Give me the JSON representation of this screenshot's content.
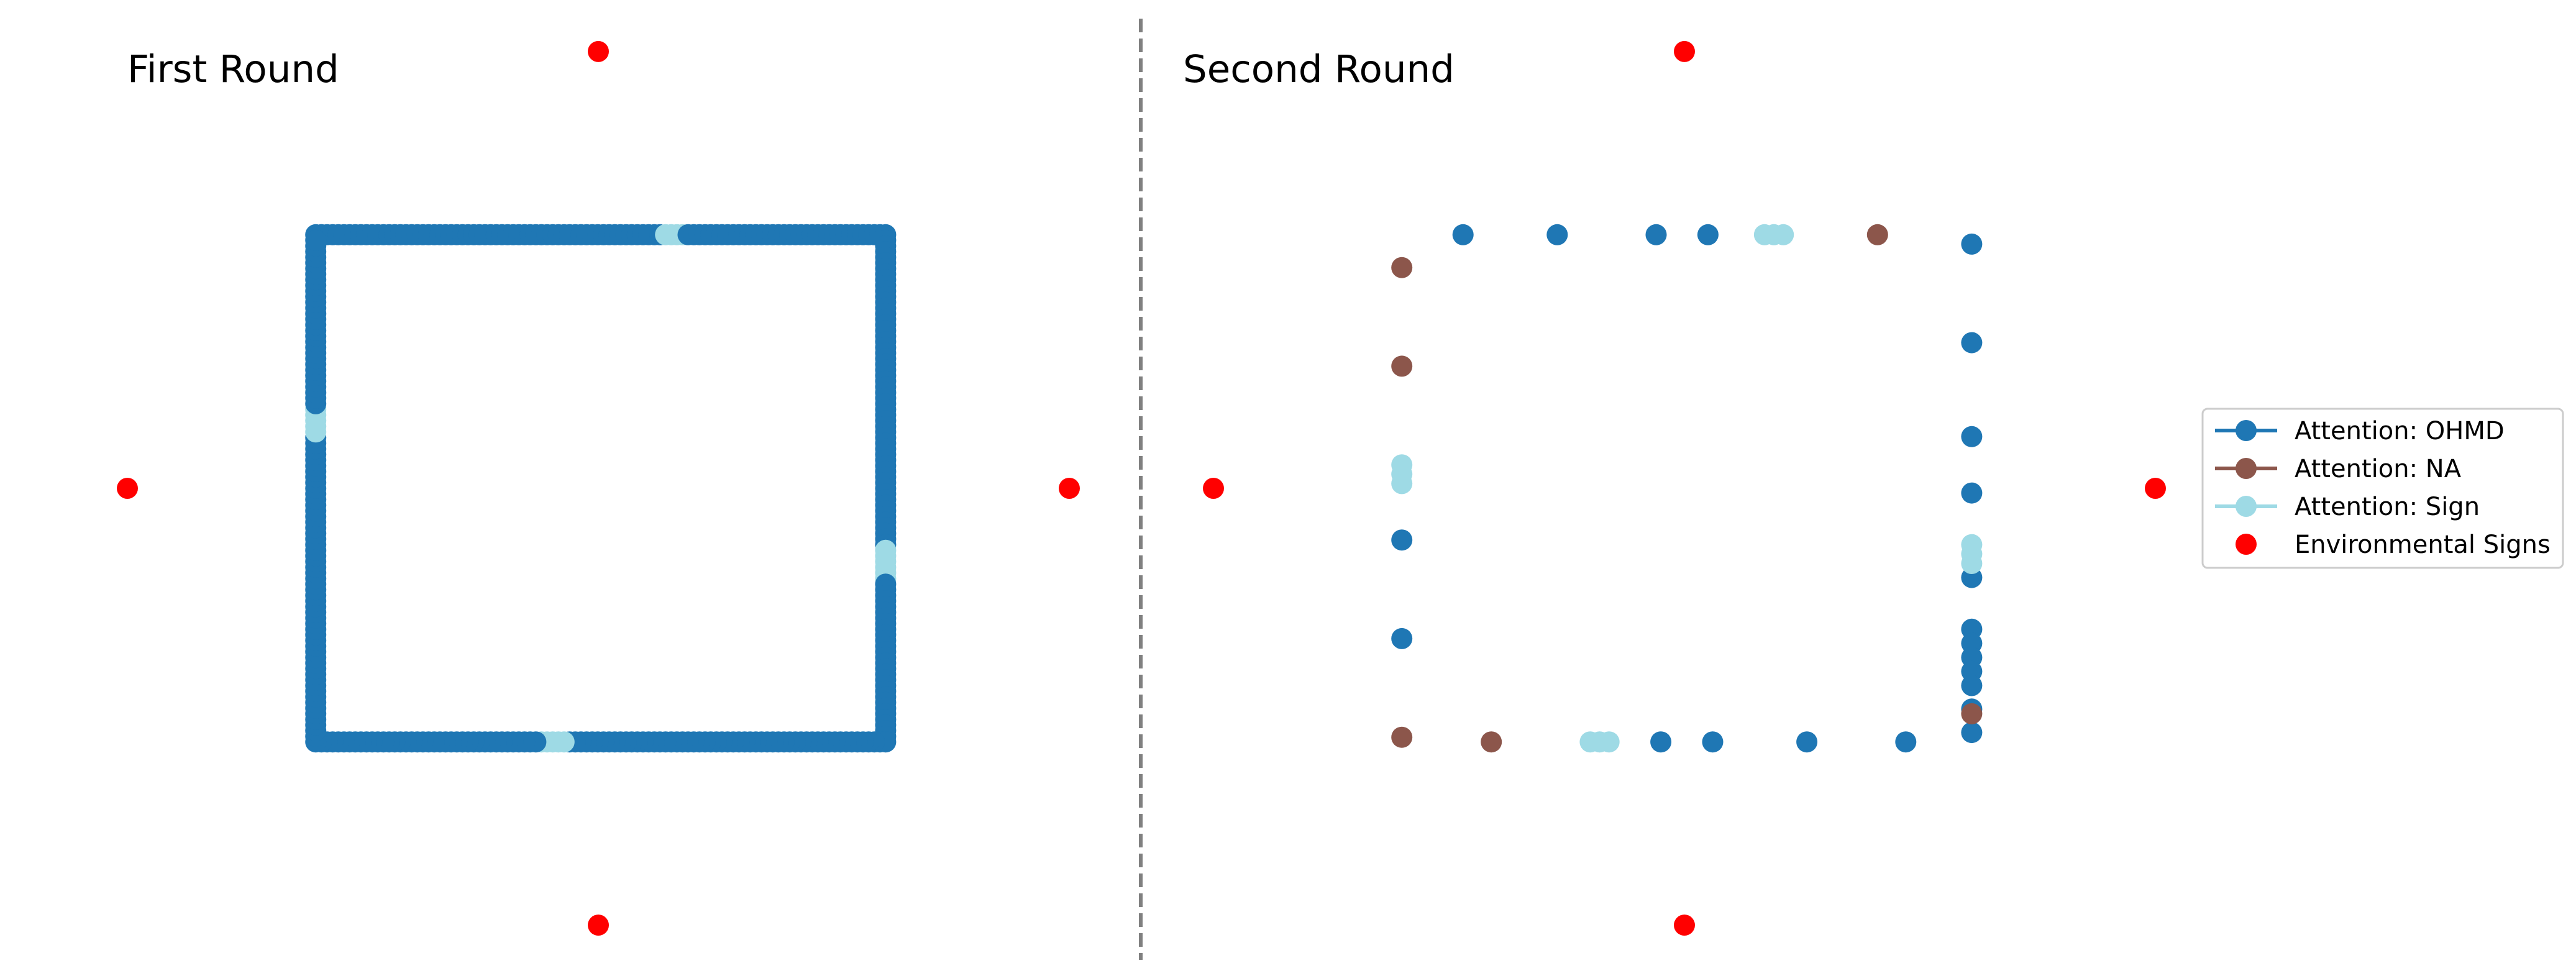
{
  "chart_data": [
    {
      "type": "scatter",
      "title": "First Round",
      "axes_visible": false,
      "grid": false,
      "colors": {
        "OHMD": "#1f77b4",
        "NA": "#8c564b",
        "Sign": "#9edae5",
        "Environmental Signs": "#ff0000"
      },
      "xlim": [
        -1.0,
        1.0
      ],
      "ylim": [
        -1.0,
        1.0
      ],
      "environmental_signs": [
        [
          0.0,
          0.93
        ],
        [
          -1.0,
          0.0
        ],
        [
          1.0,
          0.0
        ],
        [
          0.0,
          -0.93
        ]
      ],
      "path": {
        "shape": "rectangle",
        "corners": [
          [
            -0.6,
            0.54
          ],
          [
            0.61,
            0.54
          ],
          [
            0.61,
            -0.54
          ],
          [
            -0.6,
            -0.54
          ]
        ],
        "default_attention": "OHMD",
        "sign_segments": [
          {
            "side": "top",
            "x_range": [
              0.14,
              0.19
            ],
            "y": 0.54
          },
          {
            "side": "left",
            "y_range": [
              0.12,
              0.17
            ],
            "x": -0.6
          },
          {
            "side": "right",
            "y_range": [
              -0.2,
              -0.13
            ],
            "x": 0.61
          },
          {
            "side": "bottom",
            "x_range": [
              -0.13,
              -0.07
            ],
            "y": -0.54
          }
        ]
      }
    },
    {
      "type": "scatter",
      "title": "Second Round",
      "axes_visible": false,
      "grid": false,
      "xlim": [
        -1.0,
        1.0
      ],
      "ylim": [
        -1.0,
        1.0
      ],
      "environmental_signs": [
        [
          0.0,
          0.93
        ],
        [
          -1.0,
          0.0
        ],
        [
          1.0,
          0.0
        ],
        [
          0.0,
          -0.93
        ]
      ],
      "series": [
        {
          "name": "Attention: OHMD",
          "points": [
            [
              -0.47,
              0.54
            ],
            [
              -0.27,
              0.54
            ],
            [
              -0.06,
              0.54
            ],
            [
              0.05,
              0.54
            ],
            [
              0.61,
              0.52
            ],
            [
              0.61,
              0.31
            ],
            [
              0.61,
              0.11
            ],
            [
              0.61,
              -0.01
            ],
            [
              0.61,
              -0.19
            ],
            [
              0.61,
              -0.3
            ],
            [
              0.61,
              -0.33
            ],
            [
              0.61,
              -0.36
            ],
            [
              0.61,
              -0.39
            ],
            [
              0.61,
              -0.42
            ],
            [
              0.61,
              -0.47
            ],
            [
              0.61,
              -0.52
            ],
            [
              -0.6,
              -0.11
            ],
            [
              -0.6,
              -0.32
            ],
            [
              -0.05,
              -0.54
            ],
            [
              0.06,
              -0.54
            ],
            [
              0.26,
              -0.54
            ],
            [
              0.47,
              -0.54
            ]
          ]
        },
        {
          "name": "Attention: NA",
          "points": [
            [
              0.41,
              0.54
            ],
            [
              -0.6,
              0.47
            ],
            [
              -0.6,
              0.26
            ],
            [
              -0.6,
              -0.53
            ],
            [
              -0.41,
              -0.54
            ],
            [
              0.61,
              -0.48
            ]
          ]
        },
        {
          "name": "Attention: Sign",
          "points": [
            [
              0.17,
              0.54
            ],
            [
              0.19,
              0.54
            ],
            [
              0.21,
              0.54
            ],
            [
              -0.6,
              0.05
            ],
            [
              -0.6,
              0.03
            ],
            [
              -0.6,
              0.01
            ],
            [
              0.61,
              -0.12
            ],
            [
              0.61,
              -0.14
            ],
            [
              0.61,
              -0.16
            ],
            [
              -0.2,
              -0.54
            ],
            [
              -0.18,
              -0.54
            ],
            [
              -0.16,
              -0.54
            ]
          ]
        }
      ]
    }
  ],
  "legend": {
    "placement": "right",
    "items": [
      {
        "label": "Attention: OHMD",
        "marker": "line-dot",
        "color": "#1f77b4"
      },
      {
        "label": "Attention: NA",
        "marker": "line-dot",
        "color": "#8c564b"
      },
      {
        "label": "Attention: Sign",
        "marker": "line-dot",
        "color": "#9edae5"
      },
      {
        "label": "Environmental Signs",
        "marker": "dot",
        "color": "#ff0000"
      }
    ]
  }
}
